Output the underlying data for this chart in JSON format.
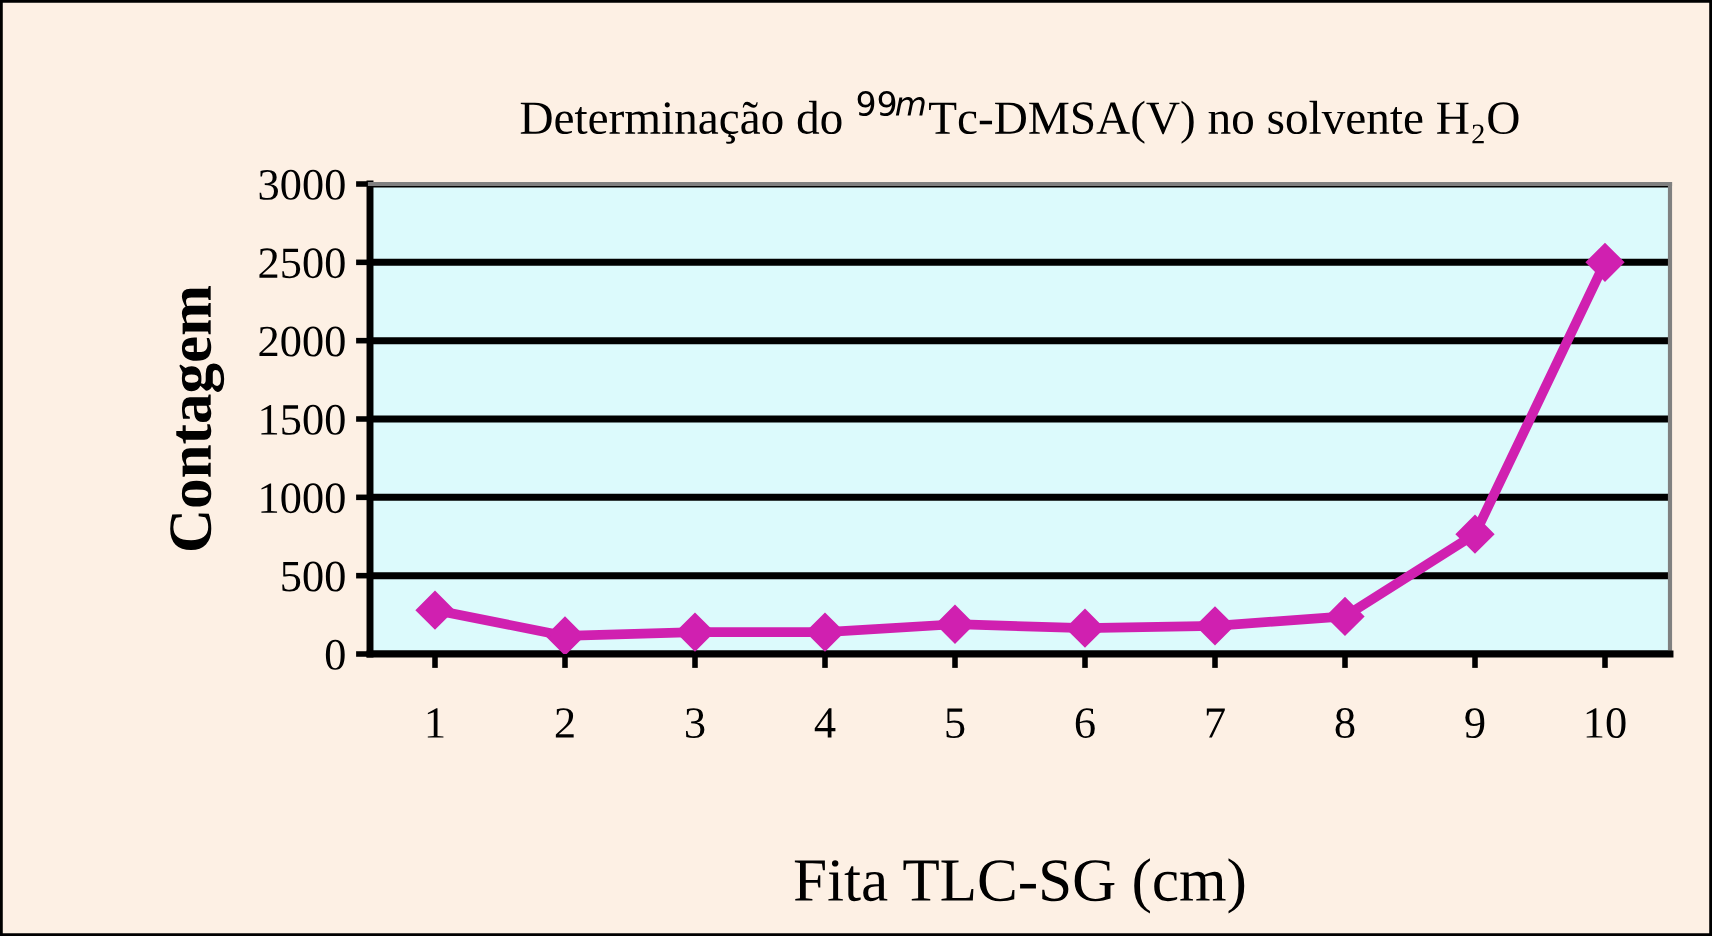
{
  "chart_data": {
    "type": "line",
    "title": "Determinação do $^{99m}$Tc-DMSA(V) no solvente H₂O",
    "xlabel": "Fita TLC-SG (cm)",
    "ylabel": "Contagem",
    "categories": [
      "1",
      "2",
      "3",
      "4",
      "5",
      "6",
      "7",
      "8",
      "9",
      "10"
    ],
    "series": [
      {
        "color": "#d020b0",
        "values": [
          280,
          115,
          140,
          140,
          190,
          165,
          180,
          240,
          765,
          2500
        ]
      }
    ],
    "ylim": [
      0,
      3000
    ],
    "yticks": [
      0,
      500,
      1000,
      1500,
      2000,
      2500,
      3000
    ],
    "grid": "y",
    "marker": "diamond",
    "line_style": "solid",
    "legend": false
  }
}
